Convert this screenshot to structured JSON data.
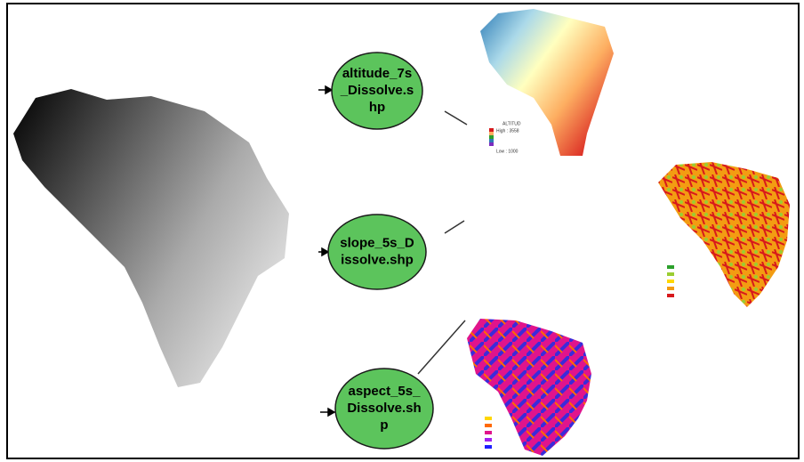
{
  "nodes": [
    {
      "lines": [
        "altitude_7s",
        "_Dissolve.s",
        "hp"
      ]
    },
    {
      "lines": [
        "slope_5s_D",
        "issolve.shp"
      ]
    },
    {
      "lines": [
        "aspect_5s_",
        "Dissolve.sh",
        "p"
      ]
    }
  ],
  "legend": {
    "title": "ALTITUD",
    "high": "High : 3558",
    "low": "Low : 1000"
  }
}
